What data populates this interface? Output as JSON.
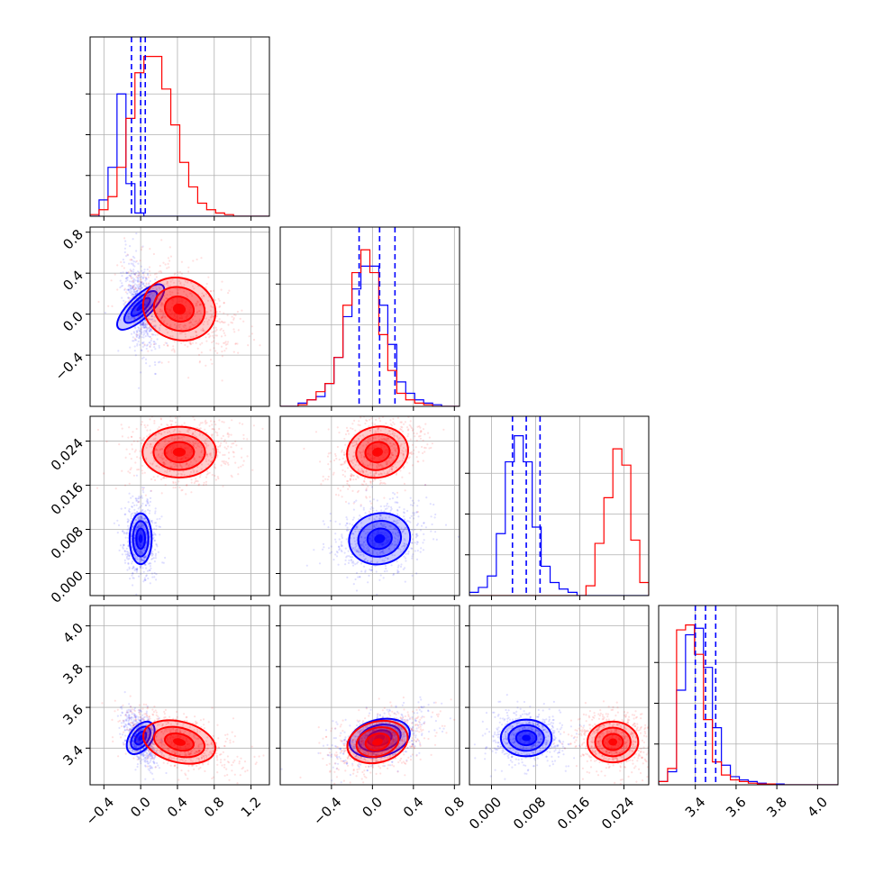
{
  "colors": {
    "blue": "#0000ff",
    "red": "#ff0000",
    "grid": "#b0b0b0"
  },
  "chart_data": {
    "type": "corner",
    "grid": true,
    "parameters": [
      {
        "key": "p0",
        "range": [
          -0.55,
          1.4
        ],
        "ticks": [
          "-0.4",
          "0.0",
          "0.4",
          "0.8",
          "1.2"
        ]
      },
      {
        "key": "p1",
        "range": [
          -0.9,
          0.85
        ],
        "ticks": [
          "-0.4",
          "0.0",
          "0.4",
          "0.8"
        ]
      },
      {
        "key": "p2",
        "range": [
          -0.004,
          0.0285
        ],
        "ticks": [
          "0.000",
          "0.008",
          "0.016",
          "0.024"
        ]
      },
      {
        "key": "p3",
        "range": [
          3.22,
          4.1
        ],
        "ticks": [
          "3.4",
          "3.6",
          "3.8",
          "4.0"
        ]
      }
    ],
    "series": [
      {
        "color": "blue",
        "mean": [
          0.0,
          0.07,
          0.0063,
          3.45
        ],
        "sd": [
          0.06,
          0.15,
          0.0023,
          0.045
        ],
        "quantiles": [
          [
            -0.1,
            0.0,
            0.05
          ],
          [
            -0.13,
            0.07,
            0.22
          ],
          [
            0.0038,
            0.0063,
            0.0088
          ],
          [
            3.4,
            3.45,
            3.5
          ]
        ],
        "hist": [
          [
            0,
            0.1,
            0.3,
            0.75,
            0.2,
            0.02,
            0,
            0,
            0,
            0,
            0,
            0,
            0,
            0,
            0,
            0,
            0,
            0,
            0,
            0
          ],
          [
            0,
            0,
            0.02,
            0.04,
            0.06,
            0.14,
            0.3,
            0.55,
            0.72,
            0.86,
            0.86,
            0.62,
            0.38,
            0.15,
            0.08,
            0.04,
            0.02,
            0.01,
            0,
            0
          ],
          [
            0.02,
            0.05,
            0.12,
            0.38,
            0.82,
            0.98,
            0.82,
            0.42,
            0.18,
            0.08,
            0.04,
            0.02,
            0,
            0,
            0,
            0,
            0,
            0,
            0,
            0
          ],
          [
            0.02,
            0.08,
            0.58,
            0.92,
            0.96,
            0.72,
            0.35,
            0.12,
            0.05,
            0.03,
            0.02,
            0.01,
            0.005,
            0.005,
            0,
            0,
            0,
            0,
            0,
            0
          ]
        ]
      },
      {
        "color": "red",
        "mean": [
          0.42,
          0.05,
          0.022,
          3.43
        ],
        "sd": [
          0.2,
          0.15,
          0.0023,
          0.05
        ],
        "hist": [
          [
            0.01,
            0.04,
            0.12,
            0.3,
            0.6,
            0.88,
            0.98,
            0.98,
            0.78,
            0.56,
            0.33,
            0.18,
            0.08,
            0.04,
            0.02,
            0.01,
            0,
            0,
            0,
            0
          ],
          [
            0,
            0,
            0.01,
            0.04,
            0.09,
            0.14,
            0.3,
            0.62,
            0.82,
            0.96,
            0.82,
            0.44,
            0.22,
            0.08,
            0.04,
            0.02,
            0.01,
            0,
            0,
            0
          ],
          [
            0,
            0,
            0,
            0,
            0,
            0,
            0,
            0,
            0,
            0,
            0,
            0,
            0,
            0.06,
            0.32,
            0.6,
            0.9,
            0.8,
            0.34,
            0.08
          ],
          [
            0.02,
            0.1,
            0.95,
            0.98,
            0.8,
            0.4,
            0.14,
            0.06,
            0.03,
            0.02,
            0.01,
            0.005,
            0.005,
            0,
            0,
            0,
            0,
            0,
            0,
            0
          ]
        ]
      }
    ]
  }
}
